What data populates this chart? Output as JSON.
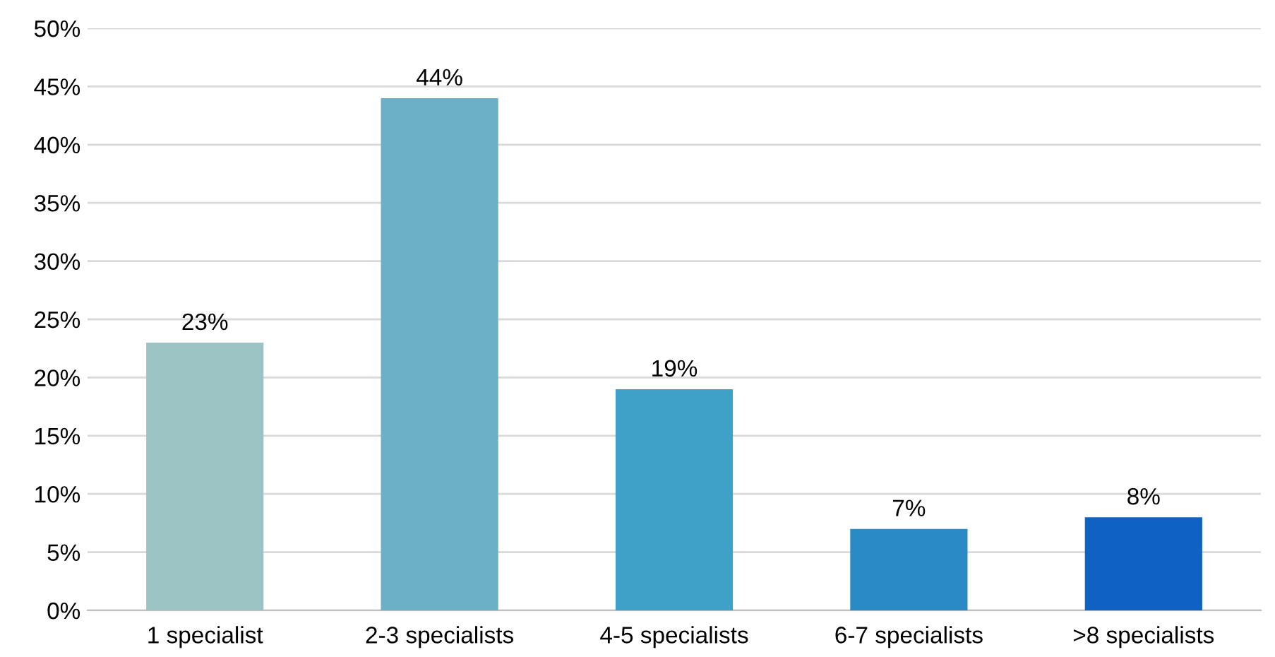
{
  "chart_data": {
    "type": "bar",
    "categories": [
      "1 specialist",
      "2-3 specialists",
      "4-5 specialists",
      "6-7 specialists",
      ">8 specialists"
    ],
    "values": [
      23,
      44,
      19,
      7,
      8
    ],
    "colors": [
      "#9dc4c4",
      "#6bb0c6",
      "#3fa0c8",
      "#2a8ac6",
      "#0f62c4"
    ],
    "value_labels": [
      "23%",
      "44%",
      "19%",
      "7%",
      "8%"
    ],
    "ylim": [
      0,
      50
    ],
    "yticks": [
      {
        "value": 0,
        "label": "0%"
      },
      {
        "value": 5,
        "label": "5%"
      },
      {
        "value": 10,
        "label": "10%"
      },
      {
        "value": 15,
        "label": "15%"
      },
      {
        "value": 20,
        "label": "20%"
      },
      {
        "value": 25,
        "label": "25%"
      },
      {
        "value": 30,
        "label": "30%"
      },
      {
        "value": 35,
        "label": "35%"
      },
      {
        "value": 40,
        "label": "40%"
      },
      {
        "value": 45,
        "label": "45%"
      },
      {
        "value": 50,
        "label": "50%"
      }
    ],
    "grid": "y",
    "legend": false
  }
}
